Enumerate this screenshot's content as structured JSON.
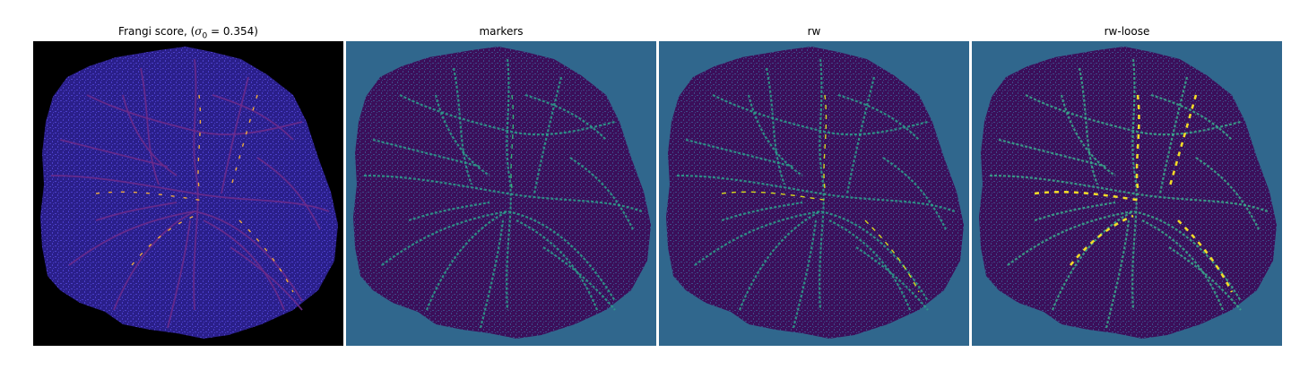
{
  "figure": {
    "panels": [
      {
        "id": "frangi",
        "title_prefix": "Frangi score, (",
        "title_sigma": "σ",
        "title_sub": "0",
        "title_suffix": " = 0.354)",
        "background_color": "#000000",
        "tissue_color": "#2a1f8a",
        "texture_color": "#4b3fc9",
        "vessel_color": "#6b2a8a",
        "highlight_color": "#f7b23a"
      },
      {
        "id": "markers",
        "title": "markers",
        "background_color": "#30678d",
        "tissue_color": "#3b0f5a",
        "texture_color": "#3e4a89",
        "vessel_color": "#2e9a8a",
        "highlight_color": "#35b779"
      },
      {
        "id": "rw",
        "title": "rw",
        "background_color": "#30678d",
        "tissue_color": "#3b0f5a",
        "texture_color": "#3e4a89",
        "vessel_color": "#2e9a8a",
        "highlight_color": "#dde318"
      },
      {
        "id": "rw-loose",
        "title": "rw-loose",
        "background_color": "#30678d",
        "tissue_color": "#3b0f5a",
        "texture_color": "#3e4a89",
        "vessel_color": "#3aa58a",
        "highlight_color": "#fde725"
      }
    ]
  }
}
